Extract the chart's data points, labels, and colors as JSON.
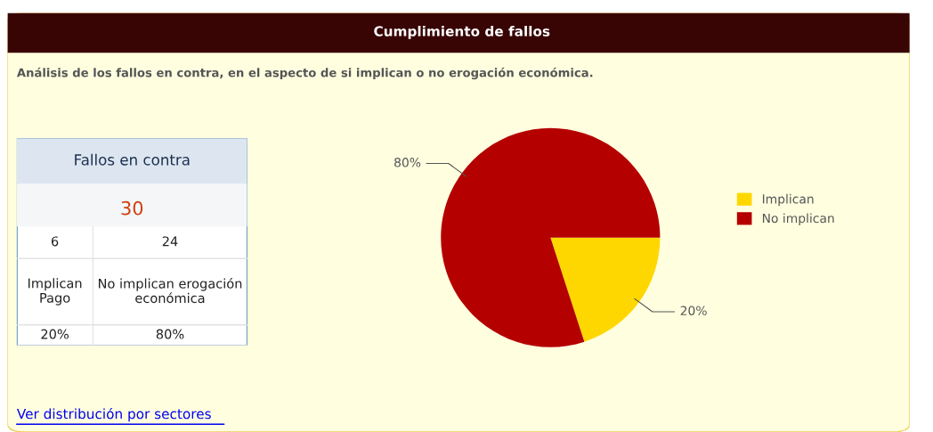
{
  "chart_data": [
    {
      "type": "other",
      "title": "Fallos en contra",
      "annotations": [
        "30",
        "6",
        "24",
        "Implican\nPago",
        "No implican erogación\neconómica",
        "20%",
        "80%"
      ]
    },
    {
      "type": "pie",
      "title": "Cumplimiento de fallos",
      "subtitle": "Análisis de los fallos en contra, en el aspecto de si implican o no erogación económica.",
      "categories": [
        "Implican",
        "No implican"
      ],
      "values": [
        20,
        80
      ],
      "colors": [
        "#ffd700",
        "#b50000"
      ],
      "value_labels": [
        "20%",
        "80%"
      ],
      "legend": "right",
      "annotations": [
        "Ver distribución por sectores"
      ]
    }
  ]
}
